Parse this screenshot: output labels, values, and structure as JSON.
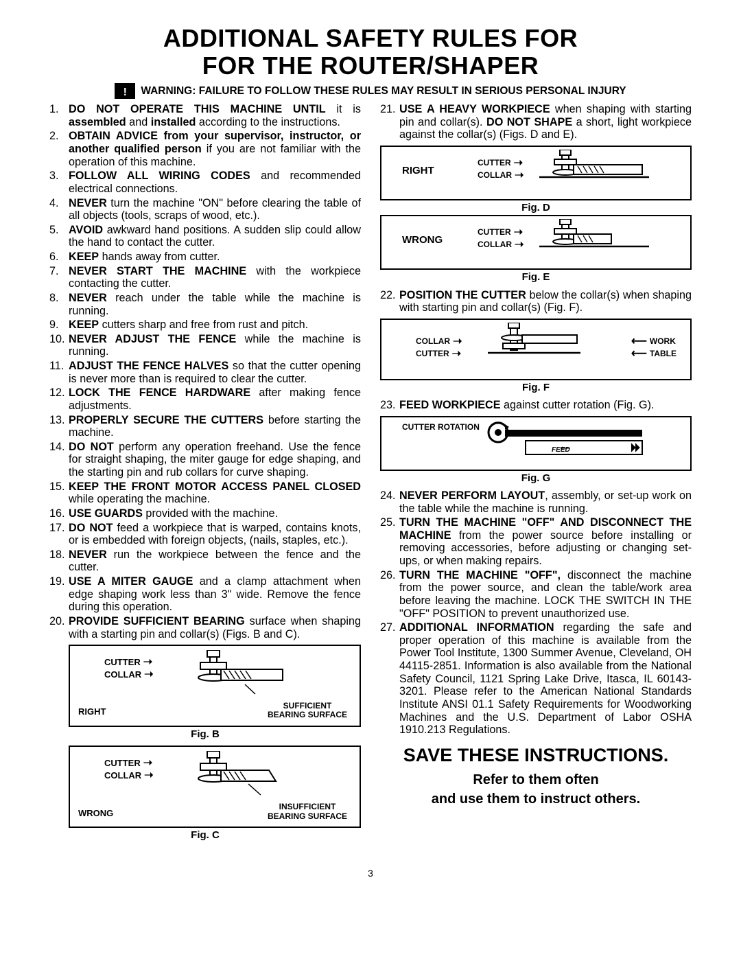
{
  "title_line1": "ADDITIONAL SAFETY RULES FOR",
  "title_line2": "FOR THE ROUTER/SHAPER",
  "warning_icon_glyph": "!",
  "warning": "WARNING: FAILURE TO FOLLOW THESE RULES MAY RESULT IN SERIOUS PERSONAL INJURY",
  "left_rules": [
    {
      "bold": "DO NOT OPERATE THIS MACHINE UNTIL",
      "rest": " it is ",
      "bold2": "assembled",
      "rest2": " and ",
      "bold3": "installed",
      "rest3": " according to the instructions."
    },
    {
      "bold": "OBTAIN ADVICE from your supervisor, instructor, or another qualified person",
      "rest": " if you are not familiar with the operation of this machine."
    },
    {
      "bold": "FOLLOW ALL WIRING CODES",
      "rest": " and recommended electrical connections."
    },
    {
      "bold": "NEVER",
      "rest": " turn the machine \"ON\" before clearing the table of all objects (tools, scraps of wood, etc.)."
    },
    {
      "bold": "AVOID",
      "rest": " awkward hand positions. A sudden slip could allow the hand to contact the cutter."
    },
    {
      "bold": "KEEP",
      "rest": " hands away from cutter."
    },
    {
      "bold": "NEVER START THE MACHINE",
      "rest": " with the workpiece contacting the cutter."
    },
    {
      "bold": "NEVER",
      "rest": " reach under the table while the machine is running."
    },
    {
      "bold": "KEEP",
      "rest": " cutters sharp and free from rust and pitch."
    },
    {
      "bold": "NEVER ADJUST THE FENCE",
      "rest": " while the machine is running."
    },
    {
      "bold": "ADJUST THE FENCE HALVES",
      "rest": " so that the cutter opening is never more than is required to clear the cutter."
    },
    {
      "bold": "LOCK THE FENCE HARDWARE",
      "rest": " after making fence adjustments."
    },
    {
      "bold": "PROPERLY SECURE THE CUTTERS",
      "rest": " before starting the machine."
    },
    {
      "bold": "DO NOT",
      "rest": " perform any operation freehand. Use the fence for straight shaping, the miter gauge for edge shaping, and the starting pin and rub collars for curve shaping."
    },
    {
      "bold": "KEEP THE FRONT MOTOR ACCESS PANEL CLOSED",
      "rest": " while operating the machine."
    },
    {
      "bold": "USE GUARDS",
      "rest": " provided with the machine."
    },
    {
      "bold": "DO NOT",
      "rest": " feed a workpiece that is warped, contains knots, or is embedded with foreign objects, (nails, staples, etc.)."
    },
    {
      "bold": "NEVER",
      "rest": " run the workpiece between the fence and the cutter."
    },
    {
      "bold": "USE A MITER GAUGE",
      "rest": " and a clamp attachment when edge shaping work less than 3\" wide. Remove the fence during this operation."
    },
    {
      "bold": "PROVIDE SUFFICIENT BEARING",
      "rest": " surface when shaping with a starting pin and collar(s) (Figs. B and C)."
    }
  ],
  "right_rules_part1": [
    {
      "bold": "USE A HEAVY WORKPIECE",
      "rest": " when shaping with starting pin and collar(s). ",
      "bold2": "DO NOT SHAPE",
      "rest2": " a short, light workpiece against the collar(s) (Figs. D and E)."
    }
  ],
  "rule22": {
    "bold": "POSITION THE CUTTER",
    "rest": " below the collar(s) when shaping with starting pin and collar(s) (Fig. F)."
  },
  "rule23": {
    "bold": "FEED WORKPIECE",
    "rest": " against cutter rotation (Fig. G)."
  },
  "right_rules_part2": [
    {
      "bold": "NEVER PERFORM LAYOUT",
      "rest": ", assembly, or set-up work on the table while the machine is running."
    },
    {
      "bold": "TURN THE MACHINE \"OFF\" AND DISCONNECT THE MACHINE",
      "rest": " from the power source before installing or removing accessories, before adjusting or changing set-ups, or when making repairs."
    },
    {
      "bold": "TURN THE MACHINE \"OFF\",",
      "rest": " disconnect the machine from the power source, and clean the table/work area before leaving the machine. LOCK THE SWITCH IN THE \"OFF\" POSITION to prevent unauthorized use."
    },
    {
      "bold": "ADDITIONAL INFORMATION",
      "rest": " regarding the safe and proper operation of this machine is available from the Power Tool Institute, 1300 Summer Avenue, Cleveland, OH 44115-2851. Information is also available from the National Safety Council, 1121 Spring Lake Drive, Itasca, IL 60143-3201. Please refer to the American National Standards Institute ANSI 01.1 Safety Requirements for Woodworking Machines and the U.S. Department of Labor OSHA 1910.213 Regulations."
    }
  ],
  "figB": {
    "caption": "Fig. B",
    "right": "RIGHT",
    "cutter": "CUTTER",
    "collar": "COLLAR",
    "note1": "SUFFICIENT",
    "note2": "BEARING SURFACE"
  },
  "figC": {
    "caption": "Fig. C",
    "wrong": "WRONG",
    "cutter": "CUTTER",
    "collar": "COLLAR",
    "note1": "INSUFFICIENT",
    "note2": "BEARING SURFACE"
  },
  "figD": {
    "caption": "Fig. D",
    "right": "RIGHT",
    "cutter": "CUTTER",
    "collar": "COLLAR"
  },
  "figE": {
    "caption": "Fig. E",
    "wrong": "WRONG",
    "cutter": "CUTTER",
    "collar": "COLLAR"
  },
  "figF": {
    "caption": "Fig. F",
    "collar": "COLLAR",
    "cutter": "CUTTER",
    "work": "WORK",
    "table": "TABLE"
  },
  "figG": {
    "caption": "Fig. G",
    "rotation": "CUTTER ROTATION",
    "feed": "FEED"
  },
  "save": {
    "title": "SAVE THESE INSTRUCTIONS.",
    "line1": "Refer to them often",
    "line2": "and use them to instruct others."
  },
  "page_number": "3"
}
